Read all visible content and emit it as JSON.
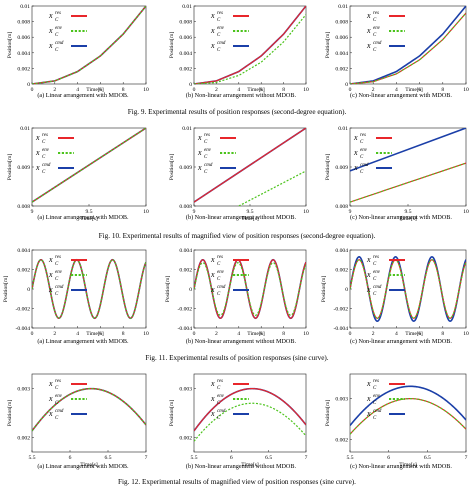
{
  "colors": {
    "res": "#e8262b",
    "env": "#4cc31c",
    "cmd": "#1b3fa8",
    "both": "#6a2a8c"
  },
  "legend": {
    "base": "x",
    "sub": "C",
    "entries": [
      {
        "sup": "res",
        "color": "#e8262b",
        "dash": false
      },
      {
        "sup": "env",
        "color": "#4cc31c",
        "dash": true
      },
      {
        "sup": "cmd",
        "color": "#1b3fa8",
        "dash": false
      }
    ]
  },
  "figures": [
    {
      "caption": "Fig. 9.   Experimental results of position responses (second-degree equation).",
      "panels": [
        {
          "caption": "(a) Linear arrangement with MDOB.",
          "chart_data": {
            "type": "line",
            "xlabel": "Time[s]",
            "ylabel": "Position[m]",
            "xlim": [
              0,
              10
            ],
            "ylim": [
              0,
              0.01
            ],
            "xticks": [
              "0",
              "2",
              "4",
              "6",
              "8",
              "10"
            ],
            "yticks": [
              "0",
              "0.002",
              "0.004",
              "0.006",
              "0.008",
              "0.01"
            ],
            "series": [
              {
                "name": "res",
                "x": [
                  0,
                  2,
                  4,
                  6,
                  8,
                  10
                ],
                "y": [
                  0,
                  0.0004,
                  0.0016,
                  0.0036,
                  0.0064,
                  0.01
                ]
              },
              {
                "name": "env",
                "x": [
                  0,
                  2,
                  4,
                  6,
                  8,
                  10
                ],
                "y": [
                  0,
                  0.0004,
                  0.0016,
                  0.0036,
                  0.0064,
                  0.01
                ]
              },
              {
                "name": "cmd",
                "x": [
                  0,
                  2,
                  4,
                  6,
                  8,
                  10
                ],
                "y": [
                  0,
                  0.0004,
                  0.0016,
                  0.0036,
                  0.0064,
                  0.01
                ]
              }
            ]
          }
        },
        {
          "caption": "(b) Non-linear arrangement without MDOB.",
          "chart_data": {
            "type": "line",
            "xlabel": "Time[s]",
            "ylabel": "Position[m]",
            "xlim": [
              0,
              10
            ],
            "ylim": [
              0,
              0.01
            ],
            "xticks": [
              "0",
              "2",
              "4",
              "6",
              "8",
              "10"
            ],
            "yticks": [
              "0",
              "0.002",
              "0.004",
              "0.006",
              "0.008",
              "0.01"
            ],
            "series": [
              {
                "name": "res",
                "x": [
                  0,
                  2,
                  4,
                  6,
                  8,
                  10
                ],
                "y": [
                  0,
                  0.0004,
                  0.0016,
                  0.0036,
                  0.0064,
                  0.01
                ]
              },
              {
                "name": "env",
                "x": [
                  0,
                  2,
                  4,
                  6,
                  8,
                  10
                ],
                "y": [
                  0,
                  0.0002,
                  0.0011,
                  0.0028,
                  0.0054,
                  0.0089
                ]
              },
              {
                "name": "cmd",
                "x": [
                  0,
                  2,
                  4,
                  6,
                  8,
                  10
                ],
                "y": [
                  0,
                  0.0004,
                  0.0016,
                  0.0036,
                  0.0064,
                  0.01
                ]
              }
            ]
          }
        },
        {
          "caption": "(c) Non-linear arrangement with MDOB.",
          "chart_data": {
            "type": "line",
            "xlabel": "Time[s]",
            "ylabel": "Position[m]",
            "xlim": [
              0,
              10
            ],
            "ylim": [
              0,
              0.01
            ],
            "xticks": [
              "0",
              "2",
              "4",
              "6",
              "8",
              "10"
            ],
            "yticks": [
              "0",
              "0.002",
              "0.004",
              "0.006",
              "0.008",
              "0.01"
            ],
            "series": [
              {
                "name": "res",
                "x": [
                  0,
                  2,
                  4,
                  6,
                  8,
                  10
                ],
                "y": [
                  0,
                  0.0003,
                  0.0013,
                  0.0031,
                  0.0057,
                  0.0091
                ]
              },
              {
                "name": "env",
                "x": [
                  0,
                  2,
                  4,
                  6,
                  8,
                  10
                ],
                "y": [
                  0,
                  0.0003,
                  0.0013,
                  0.0031,
                  0.0057,
                  0.0091
                ]
              },
              {
                "name": "cmd",
                "x": [
                  0,
                  2,
                  4,
                  6,
                  8,
                  10
                ],
                "y": [
                  0,
                  0.0004,
                  0.0016,
                  0.0036,
                  0.0064,
                  0.01
                ]
              }
            ]
          }
        }
      ]
    },
    {
      "caption": "Fig. 10.   Experimental results of magnified view of position responses (second-degree equation).",
      "panels": [
        {
          "caption": "(a) Linear arrangement with MDOB.",
          "chart_data": {
            "type": "line",
            "xlabel": "Time[s]",
            "ylabel": "Position[m]",
            "xlim": [
              9,
              10
            ],
            "ylim": [
              0.008,
              0.01
            ],
            "xticks": [
              "9",
              "9.5",
              "10"
            ],
            "yticks": [
              "0.008",
              "0.009",
              "0.01"
            ],
            "series": [
              {
                "name": "res",
                "x": [
                  9,
                  10
                ],
                "y": [
                  0.0081,
                  0.01
                ]
              },
              {
                "name": "env",
                "x": [
                  9,
                  10
                ],
                "y": [
                  0.0081,
                  0.01
                ]
              },
              {
                "name": "cmd",
                "x": [
                  9,
                  10
                ],
                "y": [
                  0.0081,
                  0.01
                ]
              }
            ]
          }
        },
        {
          "caption": "(b) Non-linear arrangement without MDOB.",
          "chart_data": {
            "type": "line",
            "xlabel": "Time[s]",
            "ylabel": "Position[m]",
            "xlim": [
              9,
              10
            ],
            "ylim": [
              0.008,
              0.01
            ],
            "xticks": [
              "9",
              "9.5",
              "10"
            ],
            "yticks": [
              "0.008",
              "0.009",
              "0.01"
            ],
            "series": [
              {
                "name": "res",
                "x": [
                  9,
                  10
                ],
                "y": [
                  0.0081,
                  0.01
                ]
              },
              {
                "name": "env",
                "x": [
                  9.4,
                  10
                ],
                "y": [
                  0.008,
                  0.0089
                ]
              },
              {
                "name": "cmd",
                "x": [
                  9,
                  10
                ],
                "y": [
                  0.0081,
                  0.01
                ]
              }
            ]
          }
        },
        {
          "caption": "(c) Non-linear arrangement with MDOB.",
          "chart_data": {
            "type": "line",
            "xlabel": "Time[s]",
            "ylabel": "Position[m]",
            "xlim": [
              9,
              10
            ],
            "ylim": [
              0.008,
              0.01
            ],
            "xticks": [
              "9",
              "9.5",
              "10"
            ],
            "yticks": [
              "0.008",
              "0.009",
              "0.01"
            ],
            "series": [
              {
                "name": "res",
                "x": [
                  9,
                  10
                ],
                "y": [
                  0.0081,
                  0.0091
                ]
              },
              {
                "name": "env",
                "x": [
                  9,
                  10
                ],
                "y": [
                  0.0081,
                  0.0091
                ]
              },
              {
                "name": "cmd",
                "x": [
                  9,
                  10
                ],
                "y": [
                  0.0089,
                  0.01
                ]
              }
            ]
          }
        }
      ]
    },
    {
      "caption": "Fig. 11.   Experimental results of position responses (sine curve).",
      "panels": [
        {
          "caption": "(a) Linear arrangement with MDOB.",
          "chart_data": {
            "type": "line",
            "xlabel": "Time[s]",
            "ylabel": "Position[m]",
            "xlim": [
              0,
              10
            ],
            "ylim": [
              -0.004,
              0.004
            ],
            "xticks": [
              "0",
              "2",
              "4",
              "6",
              "8",
              "10"
            ],
            "yticks": [
              "-0.004",
              "-0.002",
              "0",
              "0.002",
              "0.004"
            ],
            "series": [
              {
                "name": "res",
                "function": "sine",
                "amplitude": 0.003,
                "period": 3.14
              },
              {
                "name": "env",
                "function": "sine",
                "amplitude": 0.003,
                "period": 3.14
              },
              {
                "name": "cmd",
                "function": "sine",
                "amplitude": 0.003,
                "period": 3.14
              }
            ]
          }
        },
        {
          "caption": "(b) Non-linear arrangement without MDOB.",
          "chart_data": {
            "type": "line",
            "xlabel": "Time[s]",
            "ylabel": "Position[m]",
            "xlim": [
              0,
              10
            ],
            "ylim": [
              -0.004,
              0.004
            ],
            "xticks": [
              "0",
              "2",
              "4",
              "6",
              "8",
              "10"
            ],
            "yticks": [
              "-0.004",
              "-0.002",
              "0",
              "0.002",
              "0.004"
            ],
            "series": [
              {
                "name": "res",
                "function": "sine",
                "amplitude": 0.003,
                "period": 3.14
              },
              {
                "name": "env",
                "function": "sine",
                "amplitude": 0.0027,
                "period": 3.14
              },
              {
                "name": "cmd",
                "function": "sine",
                "amplitude": 0.003,
                "period": 3.14
              }
            ]
          }
        },
        {
          "caption": "(c) Non-linear arrangement with MDOB.",
          "chart_data": {
            "type": "line",
            "xlabel": "Time[s]",
            "ylabel": "Position[m]",
            "xlim": [
              0,
              10
            ],
            "ylim": [
              -0.004,
              0.004
            ],
            "xticks": [
              "0",
              "2",
              "4",
              "6",
              "8",
              "10"
            ],
            "yticks": [
              "-0.004",
              "-0.002",
              "0",
              "0.002",
              "0.004"
            ],
            "series": [
              {
                "name": "res",
                "function": "sine",
                "amplitude": 0.003,
                "period": 3.14
              },
              {
                "name": "env",
                "function": "sine",
                "amplitude": 0.003,
                "period": 3.14
              },
              {
                "name": "cmd",
                "function": "sine",
                "amplitude": 0.0033,
                "period": 3.14
              }
            ]
          }
        }
      ]
    },
    {
      "caption": "Fig. 12.   Experimental results of magnified view of position responses (sine curve).",
      "panels": [
        {
          "caption": "(a) Linear arrangement with MDOB.",
          "chart_data": {
            "type": "line",
            "xlabel": "Time[s]",
            "ylabel": "Position[m]",
            "xlim": [
              5.5,
              7
            ],
            "ylim": [
              0.0017,
              0.0033
            ],
            "xticks": [
              "5.5",
              "6",
              "6.5",
              "7"
            ],
            "yticks": [
              "0.002",
              "0.003"
            ],
            "series": [
              {
                "name": "res",
                "function": "sine-peak",
                "amplitude": 0.003,
                "peak_x": 6.28
              },
              {
                "name": "env",
                "function": "sine-peak",
                "amplitude": 0.003,
                "peak_x": 6.28
              },
              {
                "name": "cmd",
                "function": "sine-peak",
                "amplitude": 0.003,
                "peak_x": 6.28
              }
            ]
          }
        },
        {
          "caption": "(b) Non-linear arrangement without MDOB.",
          "chart_data": {
            "type": "line",
            "xlabel": "Time[s]",
            "ylabel": "Position[m]",
            "xlim": [
              5.5,
              7
            ],
            "ylim": [
              0.0017,
              0.0033
            ],
            "xticks": [
              "5.5",
              "6",
              "6.5",
              "7"
            ],
            "yticks": [
              "0.002",
              "0.003"
            ],
            "series": [
              {
                "name": "res",
                "function": "sine-peak",
                "amplitude": 0.003,
                "peak_x": 6.28
              },
              {
                "name": "env",
                "function": "sine-peak",
                "amplitude": 0.0027,
                "peak_x": 6.28
              },
              {
                "name": "cmd",
                "function": "sine-peak",
                "amplitude": 0.003,
                "peak_x": 6.28
              }
            ]
          }
        },
        {
          "caption": "(c) Non-linear arrangement with MDOB.",
          "chart_data": {
            "type": "line",
            "xlabel": "Time[s]",
            "ylabel": "Position[m]",
            "xlim": [
              5.5,
              7
            ],
            "ylim": [
              0.0017,
              0.0036
            ],
            "xticks": [
              "5.5",
              "6",
              "6.5",
              "7"
            ],
            "yticks": [
              "0.002",
              "0.003"
            ],
            "series": [
              {
                "name": "res",
                "function": "sine-peak",
                "amplitude": 0.003,
                "peak_x": 6.28
              },
              {
                "name": "env",
                "function": "sine-peak",
                "amplitude": 0.003,
                "peak_x": 6.28
              },
              {
                "name": "cmd",
                "function": "sine-peak",
                "amplitude": 0.0033,
                "peak_x": 6.28
              }
            ]
          }
        }
      ]
    }
  ]
}
